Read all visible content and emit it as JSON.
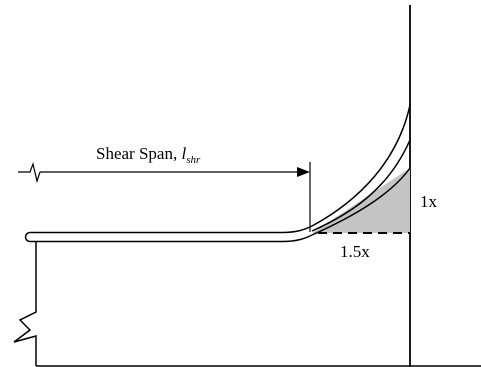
{
  "labels": {
    "shear_span_text": "Shear Span, ",
    "shear_span_symbol": "l",
    "shear_span_subscript": "shr",
    "vertical_ratio": "1x",
    "horizontal_ratio": "1.5x"
  },
  "colors": {
    "line": "#000000",
    "fill": "#c4c4c4",
    "background": "#ffffff"
  }
}
